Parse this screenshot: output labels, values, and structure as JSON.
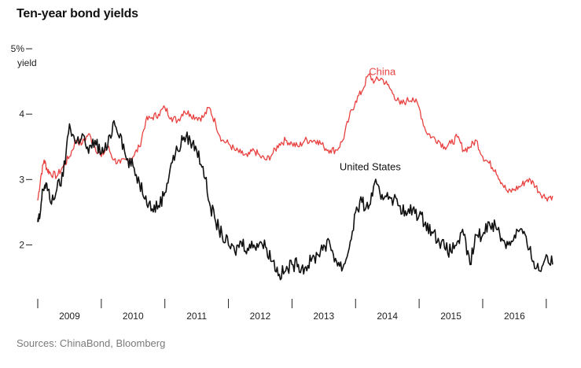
{
  "page": {
    "title": "Ten-year bond yields",
    "source": "Sources: ChinaBond, Bloomberg"
  },
  "colors": {
    "china": "#e8413f",
    "us": "#111111",
    "axis": "#222222"
  },
  "chart_data": {
    "type": "line",
    "title": "Ten-year bond yields",
    "ylabel": "yield",
    "ylim": [
      1.32,
      5.0
    ],
    "xlim": [
      2008.7,
      2016.9
    ],
    "y_ticks": [
      {
        "value": 5,
        "label": "5%"
      },
      {
        "value": 4,
        "label": "4"
      },
      {
        "value": 3,
        "label": "3"
      },
      {
        "value": 2,
        "label": "2"
      }
    ],
    "x_tick_lines": [
      2008.7,
      2009.7,
      2010.7,
      2011.7,
      2012.7,
      2013.7,
      2014.7,
      2015.7,
      2016.7
    ],
    "x_labels": [
      {
        "at": 2009.2,
        "label": "2009"
      },
      {
        "at": 2010.2,
        "label": "2010"
      },
      {
        "at": 2011.2,
        "label": "2011"
      },
      {
        "at": 2012.2,
        "label": "2012"
      },
      {
        "at": 2013.2,
        "label": "2013"
      },
      {
        "at": 2014.2,
        "label": "2014"
      },
      {
        "at": 2015.2,
        "label": "2015"
      },
      {
        "at": 2016.2,
        "label": "2016"
      }
    ],
    "series": [
      {
        "name": "China",
        "label_at": [
          2014.12,
          4.6
        ],
        "x": [
          2008.7,
          2008.75,
          2008.8,
          2008.85,
          2008.9,
          2009.0,
          2009.1,
          2009.2,
          2009.3,
          2009.4,
          2009.5,
          2009.6,
          2009.7,
          2009.8,
          2009.9,
          2010.0,
          2010.1,
          2010.2,
          2010.3,
          2010.4,
          2010.5,
          2010.6,
          2010.7,
          2010.8,
          2010.9,
          2011.0,
          2011.1,
          2011.2,
          2011.3,
          2011.4,
          2011.5,
          2011.6,
          2011.7,
          2011.8,
          2011.9,
          2012.0,
          2012.1,
          2012.2,
          2012.3,
          2012.4,
          2012.5,
          2012.6,
          2012.7,
          2012.8,
          2012.9,
          2013.0,
          2013.1,
          2013.2,
          2013.3,
          2013.4,
          2013.5,
          2013.6,
          2013.7,
          2013.8,
          2013.9,
          2014.0,
          2014.1,
          2014.2,
          2014.3,
          2014.4,
          2014.5,
          2014.6,
          2014.7,
          2014.8,
          2014.9,
          2015.0,
          2015.1,
          2015.2,
          2015.3,
          2015.4,
          2015.5,
          2015.6,
          2015.7,
          2015.8,
          2015.9,
          2016.0,
          2016.1,
          2016.2,
          2016.3,
          2016.4,
          2016.5,
          2016.6,
          2016.7,
          2016.8
        ],
        "values": [
          2.68,
          3.05,
          3.3,
          3.15,
          3.1,
          3.05,
          3.2,
          3.35,
          3.6,
          3.55,
          3.7,
          3.5,
          3.35,
          3.5,
          3.3,
          3.25,
          3.3,
          3.35,
          3.5,
          3.9,
          3.95,
          4.0,
          4.1,
          3.95,
          3.9,
          4.05,
          4.0,
          3.95,
          3.95,
          4.1,
          3.85,
          3.6,
          3.55,
          3.45,
          3.4,
          3.35,
          3.45,
          3.35,
          3.3,
          3.4,
          3.55,
          3.6,
          3.55,
          3.5,
          3.6,
          3.6,
          3.6,
          3.5,
          3.45,
          3.45,
          3.6,
          3.95,
          4.2,
          4.35,
          4.6,
          4.5,
          4.55,
          4.45,
          4.3,
          4.15,
          4.2,
          4.25,
          4.1,
          3.75,
          3.65,
          3.6,
          3.5,
          3.55,
          3.65,
          3.45,
          3.5,
          3.6,
          3.35,
          3.25,
          3.15,
          2.95,
          2.8,
          2.85,
          2.9,
          3.0,
          2.95,
          2.8,
          2.72,
          2.75
        ]
      },
      {
        "name": "United States",
        "label_at": [
          2013.93,
          3.14
        ],
        "x": [
          2008.7,
          2008.73,
          2008.78,
          2008.83,
          2008.9,
          2009.0,
          2009.1,
          2009.2,
          2009.3,
          2009.4,
          2009.5,
          2009.6,
          2009.7,
          2009.8,
          2009.9,
          2010.0,
          2010.1,
          2010.2,
          2010.3,
          2010.4,
          2010.5,
          2010.6,
          2010.7,
          2010.8,
          2010.9,
          2011.0,
          2011.1,
          2011.2,
          2011.3,
          2011.4,
          2011.5,
          2011.6,
          2011.7,
          2011.8,
          2011.9,
          2012.0,
          2012.1,
          2012.2,
          2012.3,
          2012.4,
          2012.5,
          2012.6,
          2012.7,
          2012.8,
          2012.9,
          2013.0,
          2013.1,
          2013.2,
          2013.3,
          2013.4,
          2013.5,
          2013.6,
          2013.7,
          2013.8,
          2013.9,
          2014.0,
          2014.1,
          2014.2,
          2014.3,
          2014.4,
          2014.5,
          2014.6,
          2014.7,
          2014.8,
          2014.9,
          2015.0,
          2015.1,
          2015.2,
          2015.3,
          2015.4,
          2015.5,
          2015.6,
          2015.7,
          2015.8,
          2015.9,
          2016.0,
          2016.1,
          2016.2,
          2016.3,
          2016.4,
          2016.5,
          2016.6,
          2016.7,
          2016.8
        ],
        "values": [
          2.35,
          2.4,
          2.85,
          2.95,
          2.65,
          2.85,
          3.05,
          3.85,
          3.55,
          3.7,
          3.4,
          3.6,
          3.4,
          3.5,
          3.9,
          3.7,
          3.3,
          3.2,
          2.95,
          2.75,
          2.55,
          2.6,
          2.8,
          3.25,
          3.45,
          3.65,
          3.6,
          3.45,
          3.2,
          2.65,
          2.35,
          2.15,
          2.0,
          1.9,
          2.05,
          1.95,
          2.0,
          2.05,
          1.95,
          1.75,
          1.55,
          1.6,
          1.7,
          1.7,
          1.65,
          1.75,
          1.85,
          2.0,
          2.0,
          1.75,
          1.65,
          1.95,
          2.5,
          2.65,
          2.55,
          2.95,
          2.7,
          2.8,
          2.7,
          2.6,
          2.45,
          2.55,
          2.45,
          2.35,
          2.2,
          2.1,
          1.95,
          1.9,
          2.05,
          2.15,
          1.7,
          2.15,
          2.15,
          2.35,
          2.3,
          2.1,
          2.0,
          2.15,
          2.25,
          2.0,
          1.75,
          1.6,
          1.85,
          1.7
        ]
      }
    ]
  }
}
